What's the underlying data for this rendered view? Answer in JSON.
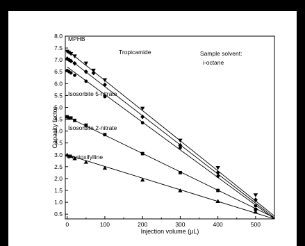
{
  "colors": {
    "frame": "#000000",
    "plot": "#000000",
    "background": "#ffffff"
  },
  "chart_data": {
    "type": "scatter",
    "title": "",
    "xlabel": "Injection volume (μL)",
    "ylabel": "Capacity factor",
    "xlim": [
      -5,
      550
    ],
    "ylim": [
      0.3,
      8.0
    ],
    "xticks": [
      0,
      100,
      200,
      300,
      400,
      500
    ],
    "yticks": [
      0.5,
      1.0,
      1.5,
      2.0,
      2.5,
      3.0,
      3.5,
      4.0,
      4.5,
      5.0,
      5.5,
      6.0,
      6.5,
      7.0,
      7.5,
      8.0
    ],
    "ytick_labels": [
      "0.5",
      "1.0",
      "1.5",
      "2.0",
      "2.5",
      "3.0",
      "3.5",
      "4.0",
      "4.5",
      "5.0",
      "5.5",
      "6.0",
      "6.5",
      "7.0",
      "7.5",
      "8.0"
    ],
    "grid": false,
    "legend": "none",
    "annotations": [
      "Sample solvent:",
      "i-octane"
    ],
    "series": [
      {
        "name": "MPHB",
        "marker": "triangle-down",
        "x": [
          0,
          5,
          10,
          20,
          50,
          70,
          100,
          200,
          300,
          400,
          500
        ],
        "y": [
          7.35,
          7.3,
          7.25,
          7.15,
          6.85,
          6.55,
          6.15,
          4.95,
          3.6,
          2.45,
          1.3
        ],
        "fit": {
          "x": [
            0,
            550
          ],
          "y": [
            7.4,
            0.42
          ]
        }
      },
      {
        "name": "Tropicamide",
        "marker": "diamond",
        "x": [
          0,
          5,
          10,
          20,
          50,
          70,
          100,
          200,
          300,
          400,
          500
        ],
        "y": [
          7.05,
          7.0,
          6.95,
          6.85,
          6.5,
          6.45,
          5.95,
          4.6,
          3.4,
          2.25,
          1.1
        ],
        "fit": {
          "x": [
            0,
            550
          ],
          "y": [
            7.1,
            0.35
          ]
        }
      },
      {
        "name": "",
        "marker": "circle",
        "x": [
          0,
          5,
          10,
          20,
          50,
          100,
          200,
          300,
          400,
          500
        ],
        "y": [
          6.55,
          6.5,
          6.45,
          6.35,
          6.1,
          5.45,
          4.35,
          3.3,
          2.1,
          0.85
        ],
        "fit": {
          "x": [
            0,
            550
          ],
          "y": [
            6.7,
            0.3
          ]
        }
      },
      {
        "name": "Isosorbite 5-nitrate",
        "marker": "square",
        "x": [
          0,
          5,
          10,
          20,
          50,
          100,
          200,
          300,
          400,
          500
        ],
        "y": [
          4.6,
          4.55,
          4.55,
          4.45,
          4.25,
          3.85,
          3.05,
          2.25,
          1.5,
          0.7
        ],
        "fit": {
          "x": [
            0,
            550
          ],
          "y": [
            4.6,
            0.35
          ]
        }
      },
      {
        "name": "Isosorbite 2-nitrate",
        "marker": "triangle-up",
        "x": [
          0,
          5,
          10,
          20,
          50,
          100,
          200,
          300,
          400,
          500
        ],
        "y": [
          3.0,
          2.95,
          2.95,
          2.85,
          2.7,
          2.45,
          1.95,
          1.5,
          1.05,
          0.6
        ],
        "fit": {
          "x": [
            0,
            550
          ],
          "y": [
            3.0,
            0.3
          ]
        }
      }
    ],
    "labels": [
      "MPHB",
      "Tropicamide",
      "Isosorbite 5-nitrate",
      "Isosorbite 2-nitrate",
      "Pentoxifylline"
    ]
  }
}
